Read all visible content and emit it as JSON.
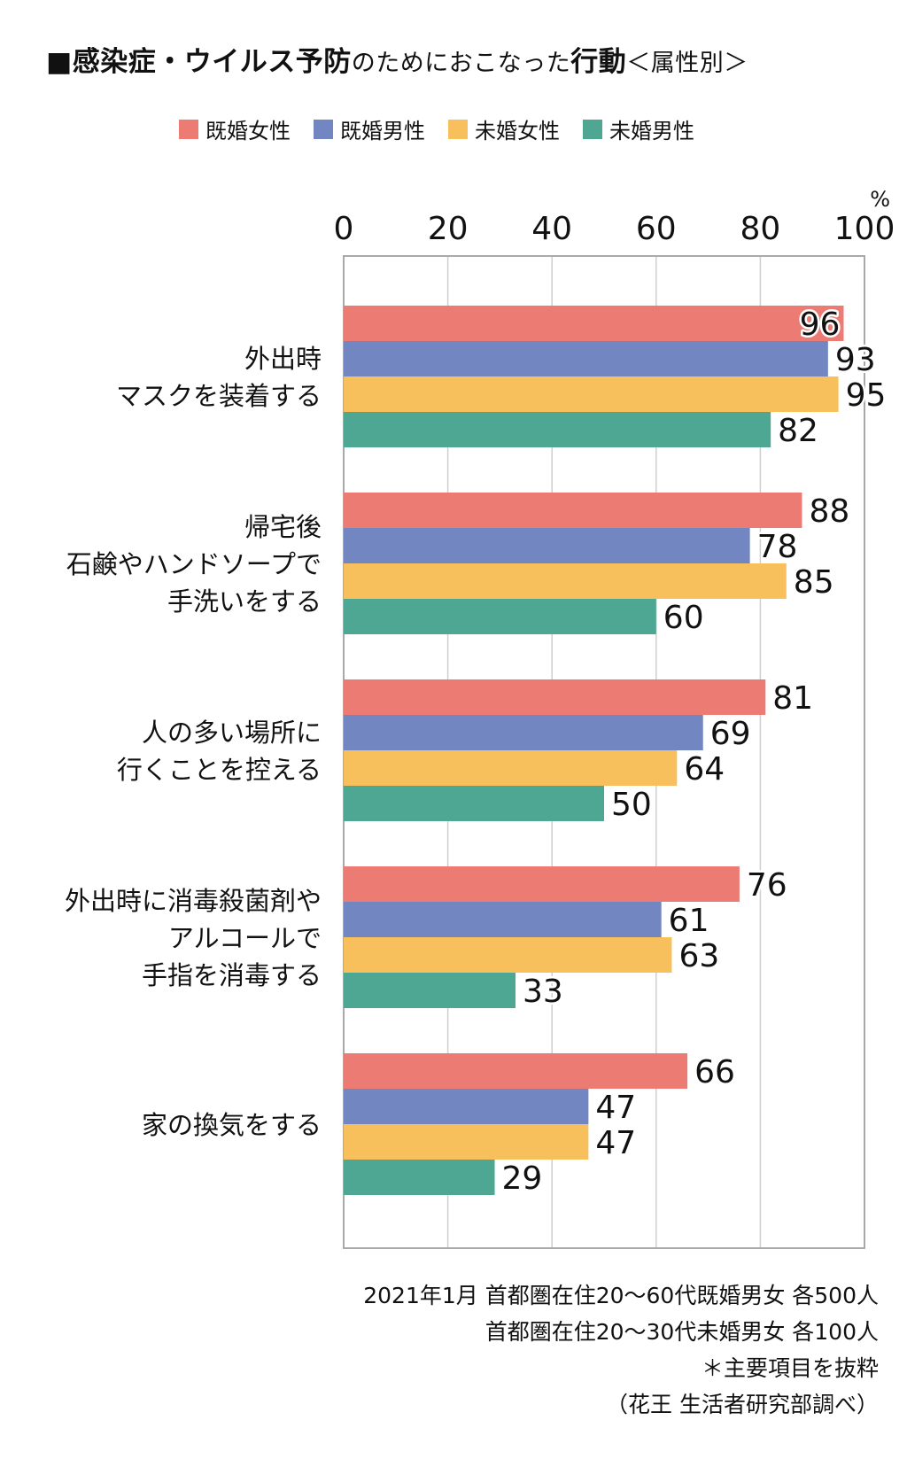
{
  "title": {
    "bold_part": "■感染症・ウイルス予防",
    "light_part": "のためにおこなった",
    "bold_part2": "行動",
    "suffix": "＜属性別＞"
  },
  "chart_data": {
    "type": "bar",
    "orientation": "horizontal",
    "unit": "%",
    "xlim": [
      0,
      100
    ],
    "x_ticks": [
      0,
      20,
      40,
      60,
      80,
      100
    ],
    "grid": true,
    "legend_placement": "top",
    "categories": [
      [
        "外出時",
        "マスクを装着する"
      ],
      [
        "帰宅後",
        "石鹸やハンドソープで",
        "手洗いをする"
      ],
      [
        "人の多い場所に",
        "行くことを控える"
      ],
      [
        "外出時に消毒殺菌剤や",
        "アルコールで",
        "手指を消毒する"
      ],
      [
        "家の換気をする"
      ]
    ],
    "series": [
      {
        "name": "既婚女性",
        "color": "#ec7b74",
        "values": [
          96,
          88,
          81,
          76,
          66
        ]
      },
      {
        "name": "既婚男性",
        "color": "#7286c2",
        "values": [
          93,
          78,
          69,
          61,
          47
        ]
      },
      {
        "name": "未婚女性",
        "color": "#f7c05c",
        "values": [
          95,
          85,
          64,
          63,
          47
        ]
      },
      {
        "name": "未婚男性",
        "color": "#4ea793",
        "values": [
          82,
          60,
          50,
          33,
          29
        ]
      }
    ]
  },
  "notes": [
    "2021年1月 首都圏在住20～60代既婚男女 各500人",
    "首都圏在住20～30代未婚男女 各100人",
    "＊主要項目を抜粋",
    "（花王 生活者研究部調べ）"
  ]
}
